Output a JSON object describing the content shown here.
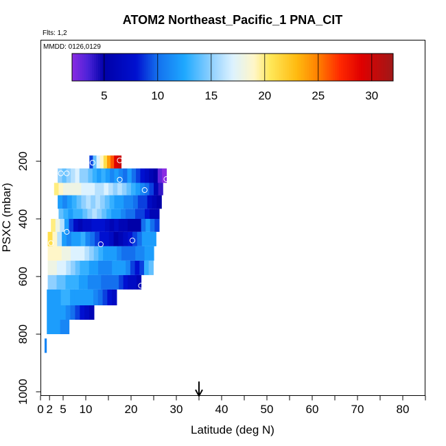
{
  "chart_data": {
    "type": "heatmap",
    "title": "ATOM2 Northeast_Pacific_1 PNA_CIT",
    "flights_label": "Flts: 1,2",
    "dates_label": "MMDD: 0126,0129",
    "xlabel": "Latitude (deg N)",
    "ylabel": "PSXC (mbar)",
    "xlim": [
      0,
      85
    ],
    "ylim": [
      1000,
      0
    ],
    "x_ticks": [
      0,
      2,
      5,
      10,
      20,
      30,
      40,
      50,
      60,
      70,
      80
    ],
    "x_minor_ticks": [
      15,
      25,
      35,
      45,
      55,
      65,
      75,
      85
    ],
    "y_ticks": [
      200,
      400,
      600,
      800,
      1000
    ],
    "marker_latitude": 35,
    "colorbar": {
      "min": 2,
      "max": 32,
      "ticks": [
        5,
        10,
        15,
        20,
        25,
        30
      ],
      "stops": [
        {
          "v": 2,
          "c": "#8a2be2"
        },
        {
          "v": 3.5,
          "c": "#4b22d8"
        },
        {
          "v": 5,
          "c": "#0000a8"
        },
        {
          "v": 8,
          "c": "#0010d0"
        },
        {
          "v": 10,
          "c": "#1470ee"
        },
        {
          "v": 12.5,
          "c": "#1ea8ff"
        },
        {
          "v": 15,
          "c": "#8fd0ff"
        },
        {
          "v": 17,
          "c": "#dcf2ff"
        },
        {
          "v": 19,
          "c": "#fff6c8"
        },
        {
          "v": 20.5,
          "c": "#ffe85a"
        },
        {
          "v": 23,
          "c": "#ffba10"
        },
        {
          "v": 25,
          "c": "#ff7f00"
        },
        {
          "v": 27,
          "c": "#ff2a00"
        },
        {
          "v": 29,
          "c": "#e00000"
        },
        {
          "v": 32,
          "c": "#a01818"
        }
      ]
    },
    "rows": [
      {
        "p_top": 180,
        "p_bottom": 225,
        "x_start": 10.8,
        "x_end": 17.8,
        "values": [
          9,
          14,
          17,
          19,
          21,
          24,
          26,
          29,
          30
        ]
      },
      {
        "p_top": 225,
        "p_bottom": 275,
        "x_start": 3.8,
        "x_end": 27.8,
        "values": [
          15,
          14,
          15,
          16,
          17,
          15,
          15,
          14,
          13,
          12,
          13,
          12,
          11,
          12,
          11,
          10,
          12,
          10,
          9,
          8,
          7,
          6,
          5,
          3,
          2
        ]
      },
      {
        "p_top": 275,
        "p_bottom": 318,
        "x_start": 3.0,
        "x_end": 27.0,
        "values": [
          20,
          19,
          18,
          18,
          18,
          18,
          17,
          17,
          17,
          16,
          16,
          17,
          16,
          15,
          16,
          15,
          14,
          13,
          12,
          11,
          10,
          9,
          6,
          4
        ]
      },
      {
        "p_top": 318,
        "p_bottom": 365,
        "x_start": 3.8,
        "x_end": 26.7,
        "values": [
          12,
          11,
          12,
          13,
          14,
          15,
          16,
          15,
          16,
          15,
          14,
          13,
          12,
          12,
          11,
          11,
          10,
          9,
          9,
          7,
          6,
          5
        ]
      },
      {
        "p_top": 365,
        "p_bottom": 400,
        "x_start": 4.0,
        "x_end": 26.2,
        "values": [
          14,
          13,
          12,
          13,
          13,
          14,
          15,
          16,
          15,
          14,
          13,
          12,
          12,
          11,
          10,
          10,
          9,
          9,
          8,
          6,
          6
        ]
      },
      {
        "p_top": 400,
        "p_bottom": 445,
        "x_start": 2.3,
        "x_end": 26.2,
        "values": [
          20,
          18,
          16,
          12,
          9,
          7,
          6,
          7,
          7,
          8,
          8,
          8,
          7,
          6,
          7,
          6,
          6,
          5,
          5,
          5,
          10,
          12,
          10,
          9
        ]
      },
      {
        "p_top": 445,
        "p_bottom": 495,
        "x_start": 1.6,
        "x_end": 25.5,
        "values": [
          21,
          19,
          16,
          12,
          11,
          12,
          12,
          13,
          11,
          10,
          9,
          8,
          8,
          7,
          5,
          6,
          7,
          8,
          9,
          10,
          12,
          12,
          12
        ]
      },
      {
        "p_top": 495,
        "p_bottom": 545,
        "x_start": 1.6,
        "x_end": 25.0,
        "values": [
          19,
          19,
          19,
          18,
          18,
          17,
          17,
          17,
          16,
          15,
          14,
          13,
          12,
          12,
          12,
          11,
          10,
          10,
          10,
          11,
          11,
          12,
          12
        ]
      },
      {
        "p_top": 545,
        "p_bottom": 595,
        "x_start": 1.6,
        "x_end": 24.9,
        "values": [
          18,
          18,
          17,
          17,
          16,
          15,
          14,
          13,
          13,
          12,
          12,
          11,
          11,
          11,
          12,
          12,
          12,
          11,
          9,
          8,
          9,
          13,
          14
        ]
      },
      {
        "p_top": 595,
        "p_bottom": 645,
        "x_start": 1.6,
        "x_end": 22.2,
        "values": [
          15,
          15,
          14,
          14,
          13,
          13,
          13,
          12,
          12,
          11,
          11,
          11,
          10,
          10,
          10,
          10,
          9,
          8,
          7,
          7,
          6
        ]
      },
      {
        "p_top": 645,
        "p_bottom": 700,
        "x_start": 1.4,
        "x_end": 16.8,
        "values": [
          12,
          12,
          12,
          13,
          13,
          12,
          12,
          12,
          12,
          12,
          11,
          10,
          9,
          8,
          7
        ]
      },
      {
        "p_top": 700,
        "p_bottom": 750,
        "x_start": 1.4,
        "x_end": 11.8,
        "values": [
          12,
          12,
          12,
          12,
          11,
          10,
          9,
          8,
          7,
          6
        ]
      },
      {
        "p_top": 750,
        "p_bottom": 800,
        "x_start": 1.4,
        "x_end": 6.3,
        "values": [
          12,
          12,
          12,
          11,
          11
        ]
      },
      {
        "p_top": 815,
        "p_bottom": 865,
        "x_start": 0.9,
        "x_end": 1.3,
        "values": [
          11
        ]
      }
    ],
    "open_circles": [
      {
        "lat": 11.5,
        "p": 205
      },
      {
        "lat": 17.5,
        "p": 197
      },
      {
        "lat": 4.5,
        "p": 242
      },
      {
        "lat": 5.8,
        "p": 242
      },
      {
        "lat": 17.5,
        "p": 264
      },
      {
        "lat": 27.8,
        "p": 262
      },
      {
        "lat": 23.0,
        "p": 300
      },
      {
        "lat": 5.8,
        "p": 445
      },
      {
        "lat": 2.3,
        "p": 484
      },
      {
        "lat": 13.3,
        "p": 488
      },
      {
        "lat": 20.3,
        "p": 475
      },
      {
        "lat": 22.2,
        "p": 632
      }
    ]
  }
}
